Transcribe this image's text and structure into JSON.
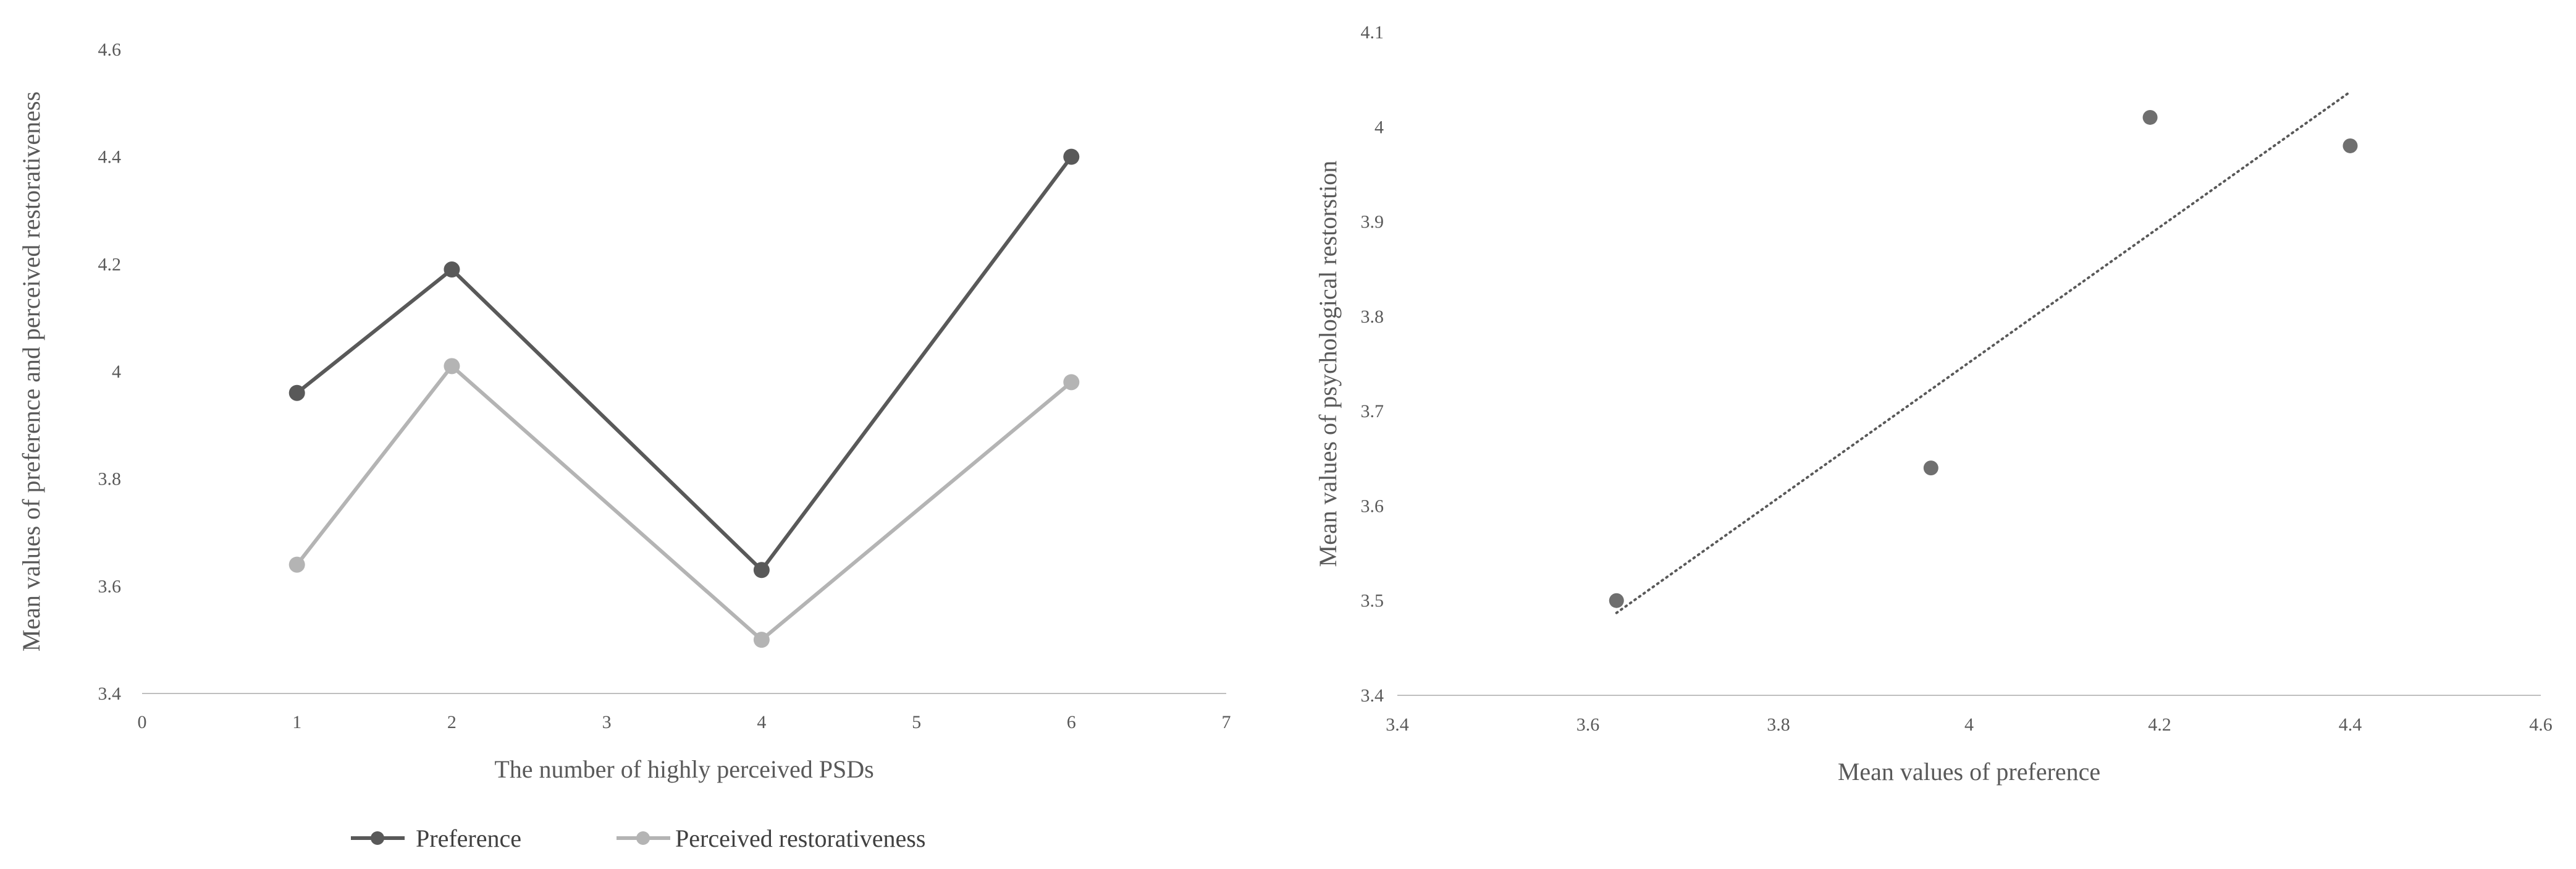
{
  "chart_data": [
    {
      "type": "line",
      "xlabel": "The number of highly perceived PSDs",
      "ylabel": "Mean values of preference and perceived restorativeness",
      "xlim": [
        0,
        7
      ],
      "ylim": [
        3.4,
        4.6
      ],
      "xticks": [
        "0",
        "1",
        "2",
        "3",
        "4",
        "5",
        "6",
        "7"
      ],
      "yticks": [
        "3.4",
        "3.6",
        "3.8",
        "4",
        "4.2",
        "4.4",
        "4.6"
      ],
      "x": [
        1,
        2,
        4,
        6
      ],
      "grid": false,
      "legend_position": "bottom",
      "series": [
        {
          "name": "Preference",
          "values": [
            3.96,
            4.19,
            3.63,
            4.4
          ],
          "color": "#595959"
        },
        {
          "name": "Perceived restorativeness",
          "values": [
            3.64,
            4.01,
            3.5,
            3.98
          ],
          "color": "#b4b4b4"
        }
      ]
    },
    {
      "type": "scatter",
      "xlabel": "Mean values of preference",
      "ylabel": "Mean values of psychological restorstion",
      "xlim": [
        3.4,
        4.6
      ],
      "ylim": [
        3.4,
        4.1
      ],
      "xticks": [
        "3.4",
        "3.6",
        "3.8",
        "4",
        "4.2",
        "4.4",
        "4.6"
      ],
      "yticks": [
        "3.4",
        "3.5",
        "3.6",
        "3.7",
        "3.8",
        "3.9",
        "4",
        "4.1"
      ],
      "grid": false,
      "points": [
        {
          "x": 3.63,
          "y": 3.5
        },
        {
          "x": 3.96,
          "y": 3.64
        },
        {
          "x": 4.19,
          "y": 4.01
        },
        {
          "x": 4.4,
          "y": 3.98
        }
      ],
      "point_color": "#6f6f6f",
      "trendline": {
        "style": "dotted",
        "color": "#595959",
        "x": [
          3.63,
          4.4
        ],
        "y": [
          3.487,
          4.037
        ]
      }
    }
  ]
}
